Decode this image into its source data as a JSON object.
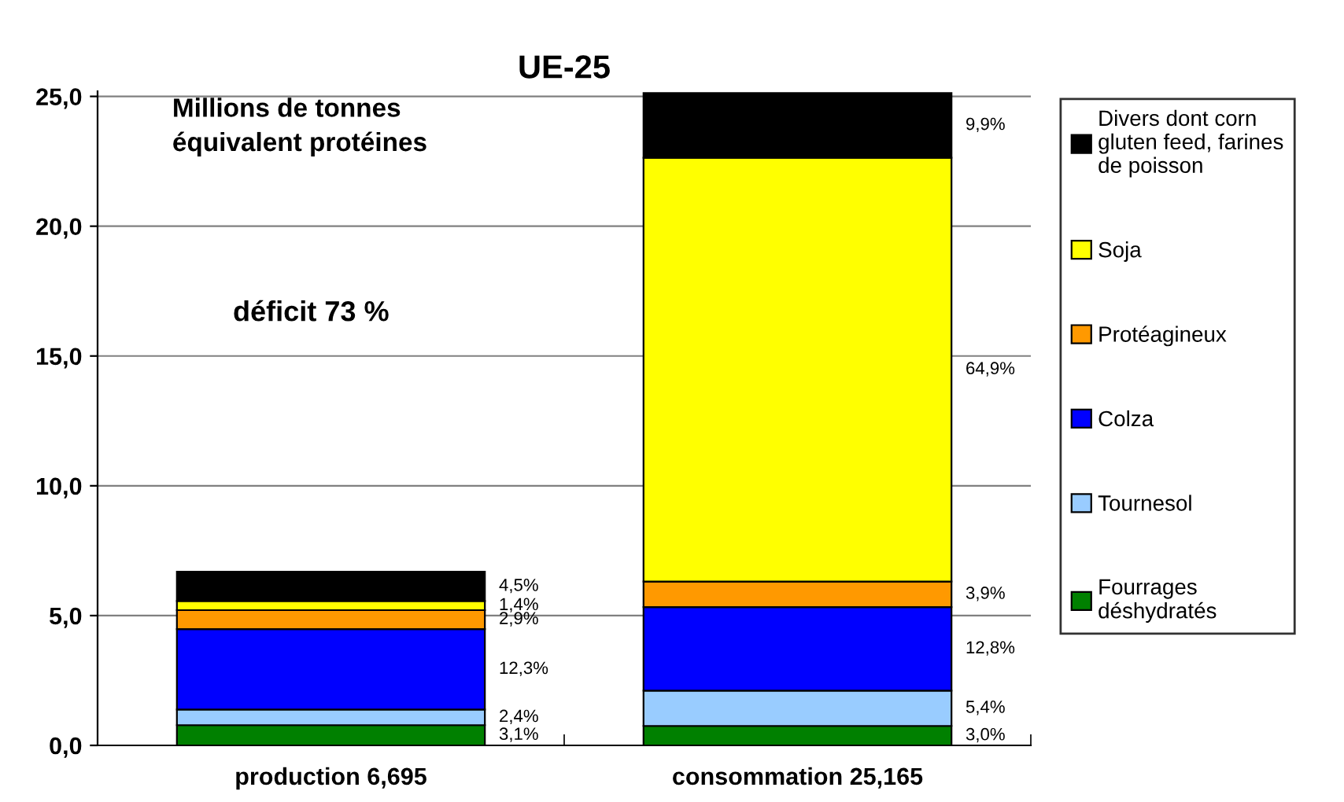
{
  "chart_data": {
    "type": "bar",
    "stacked": true,
    "title": "UE-25",
    "categories": [
      "production 6,695",
      "consommation 25,165"
    ],
    "series": [
      {
        "name": "Fourrages déshydratés",
        "color": "#008000",
        "values": [
          0.78,
          0.75
        ]
      },
      {
        "name": "Tournesol",
        "color": "#99ccff",
        "values": [
          0.6,
          1.36
        ]
      },
      {
        "name": "Colza",
        "color": "#0000ff",
        "values": [
          3.1,
          3.22
        ]
      },
      {
        "name": "Protéagineux",
        "color": "#ff9900",
        "values": [
          0.73,
          0.98
        ]
      },
      {
        "name": "Soja",
        "color": "#ffff00",
        "values": [
          0.35,
          16.33
        ]
      },
      {
        "name": "Divers dont corn gluten feed, farines de poisson",
        "color": "#000000",
        "values": [
          1.13,
          2.49
        ]
      }
    ],
    "ylim": [
      0,
      25.2
    ],
    "yticks": [
      {
        "value": 0,
        "label": "0,0"
      },
      {
        "value": 5,
        "label": "5,0"
      },
      {
        "value": 10,
        "label": "10,0"
      },
      {
        "value": 15,
        "label": "15,0"
      },
      {
        "value": 20,
        "label": "20,0"
      },
      {
        "value": 25,
        "label": "25,0"
      }
    ],
    "grid": "y",
    "legend": "right",
    "annotations": [
      "Millions de tonnes équivalent protéines",
      "déficit 73 %",
      "3,1%",
      "2,4%",
      "12,3%",
      "2,9%",
      "1,4%",
      "4,5%",
      "3,0%",
      "5,4%",
      "12,8%",
      "3,9%",
      "64,9%",
      "9,9%"
    ]
  }
}
